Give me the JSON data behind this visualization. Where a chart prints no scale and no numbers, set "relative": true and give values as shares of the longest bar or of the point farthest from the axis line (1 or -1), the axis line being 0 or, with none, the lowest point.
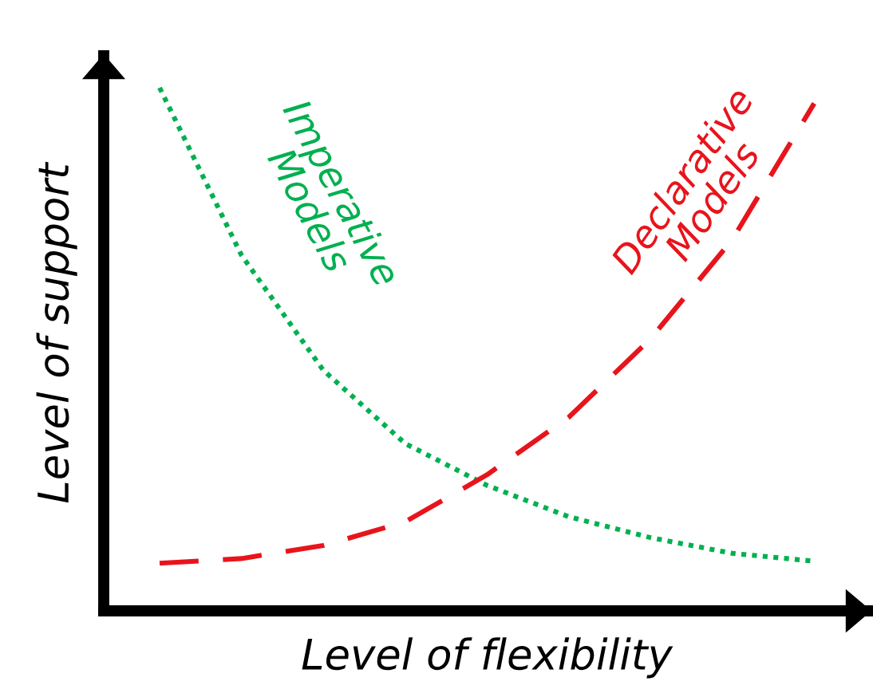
{
  "chart_data": {
    "type": "line",
    "relative": true,
    "xlabel": "Level of flexibility",
    "ylabel": "Level of support",
    "categories": [
      null,
      null,
      null,
      null,
      null,
      null,
      null,
      null,
      null
    ],
    "legend": false,
    "tick_labels": false,
    "series": [
      {
        "name": "Imperative\nModels",
        "color": "#00b050",
        "line_style": "dotted",
        "values": [
          1,
          0.68,
          0.46,
          0.32,
          0.24,
          0.18,
          0.14,
          0.11,
          0.095
        ]
      },
      {
        "name": "Declarative\nModels",
        "color": "#e8141c",
        "line_style": "dashed",
        "values": [
          0.091,
          0.1,
          0.125,
          0.17,
          0.26,
          0.37,
          0.52,
          0.71,
          0.97
        ]
      }
    ]
  }
}
